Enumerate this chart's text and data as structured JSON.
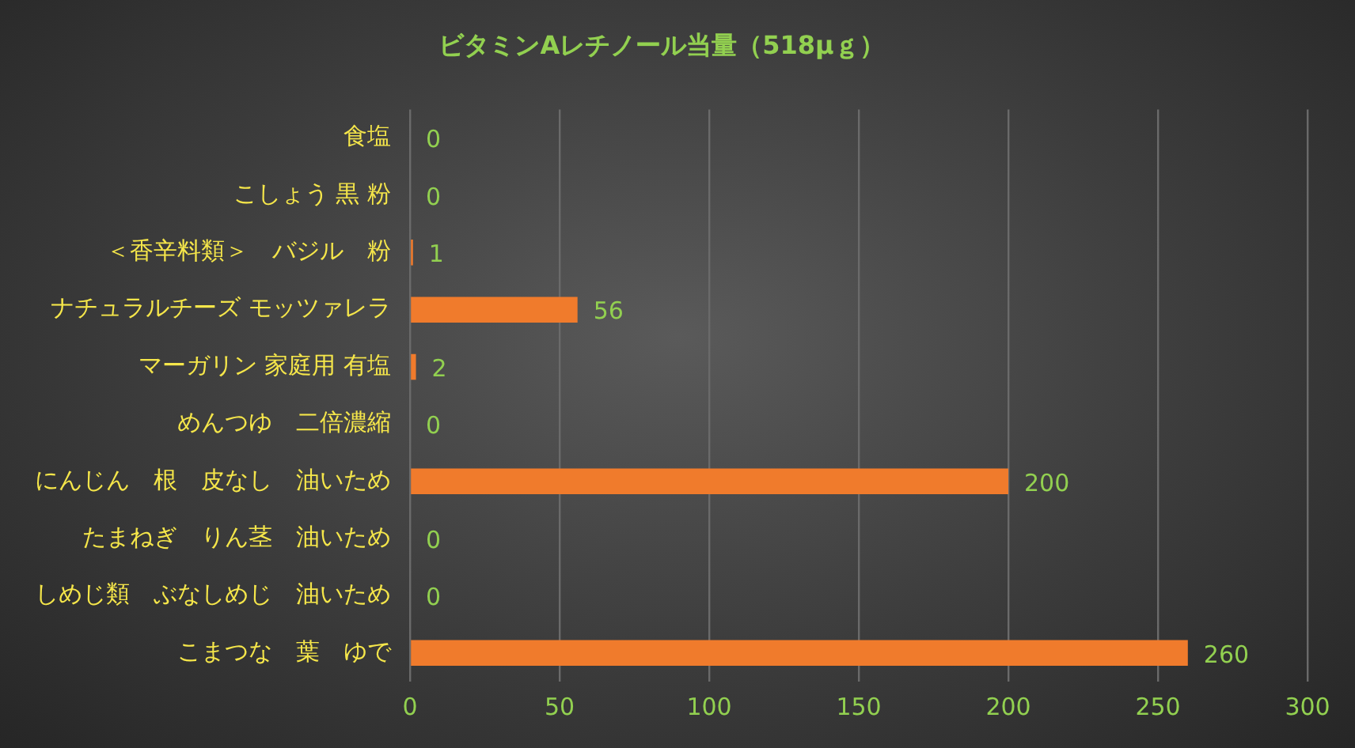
{
  "chart_data": {
    "type": "bar",
    "orientation": "horizontal",
    "title": "ビタミンAレチノール当量（518μｇ）",
    "categories": [
      "食塩",
      "こしょう 黒 粉",
      "＜香辛料類＞　バジル　粉",
      "ナチュラルチーズ モッツァレラ",
      "マーガリン 家庭用 有塩",
      "めんつゆ　二倍濃縮",
      "にんじん　根　皮なし　油いため",
      "たまねぎ　りん茎　油いため",
      "しめじ類　ぶなしめじ　油いため",
      "こまつな　葉　ゆで"
    ],
    "values": [
      0,
      0,
      1,
      56,
      2,
      0,
      200,
      0,
      0,
      260
    ],
    "color": "#f07b2c",
    "xlim": [
      0,
      300
    ],
    "xticks": [
      0,
      50,
      100,
      150,
      200,
      250,
      300
    ],
    "grid": "x",
    "data_labels": true,
    "legend": false
  }
}
